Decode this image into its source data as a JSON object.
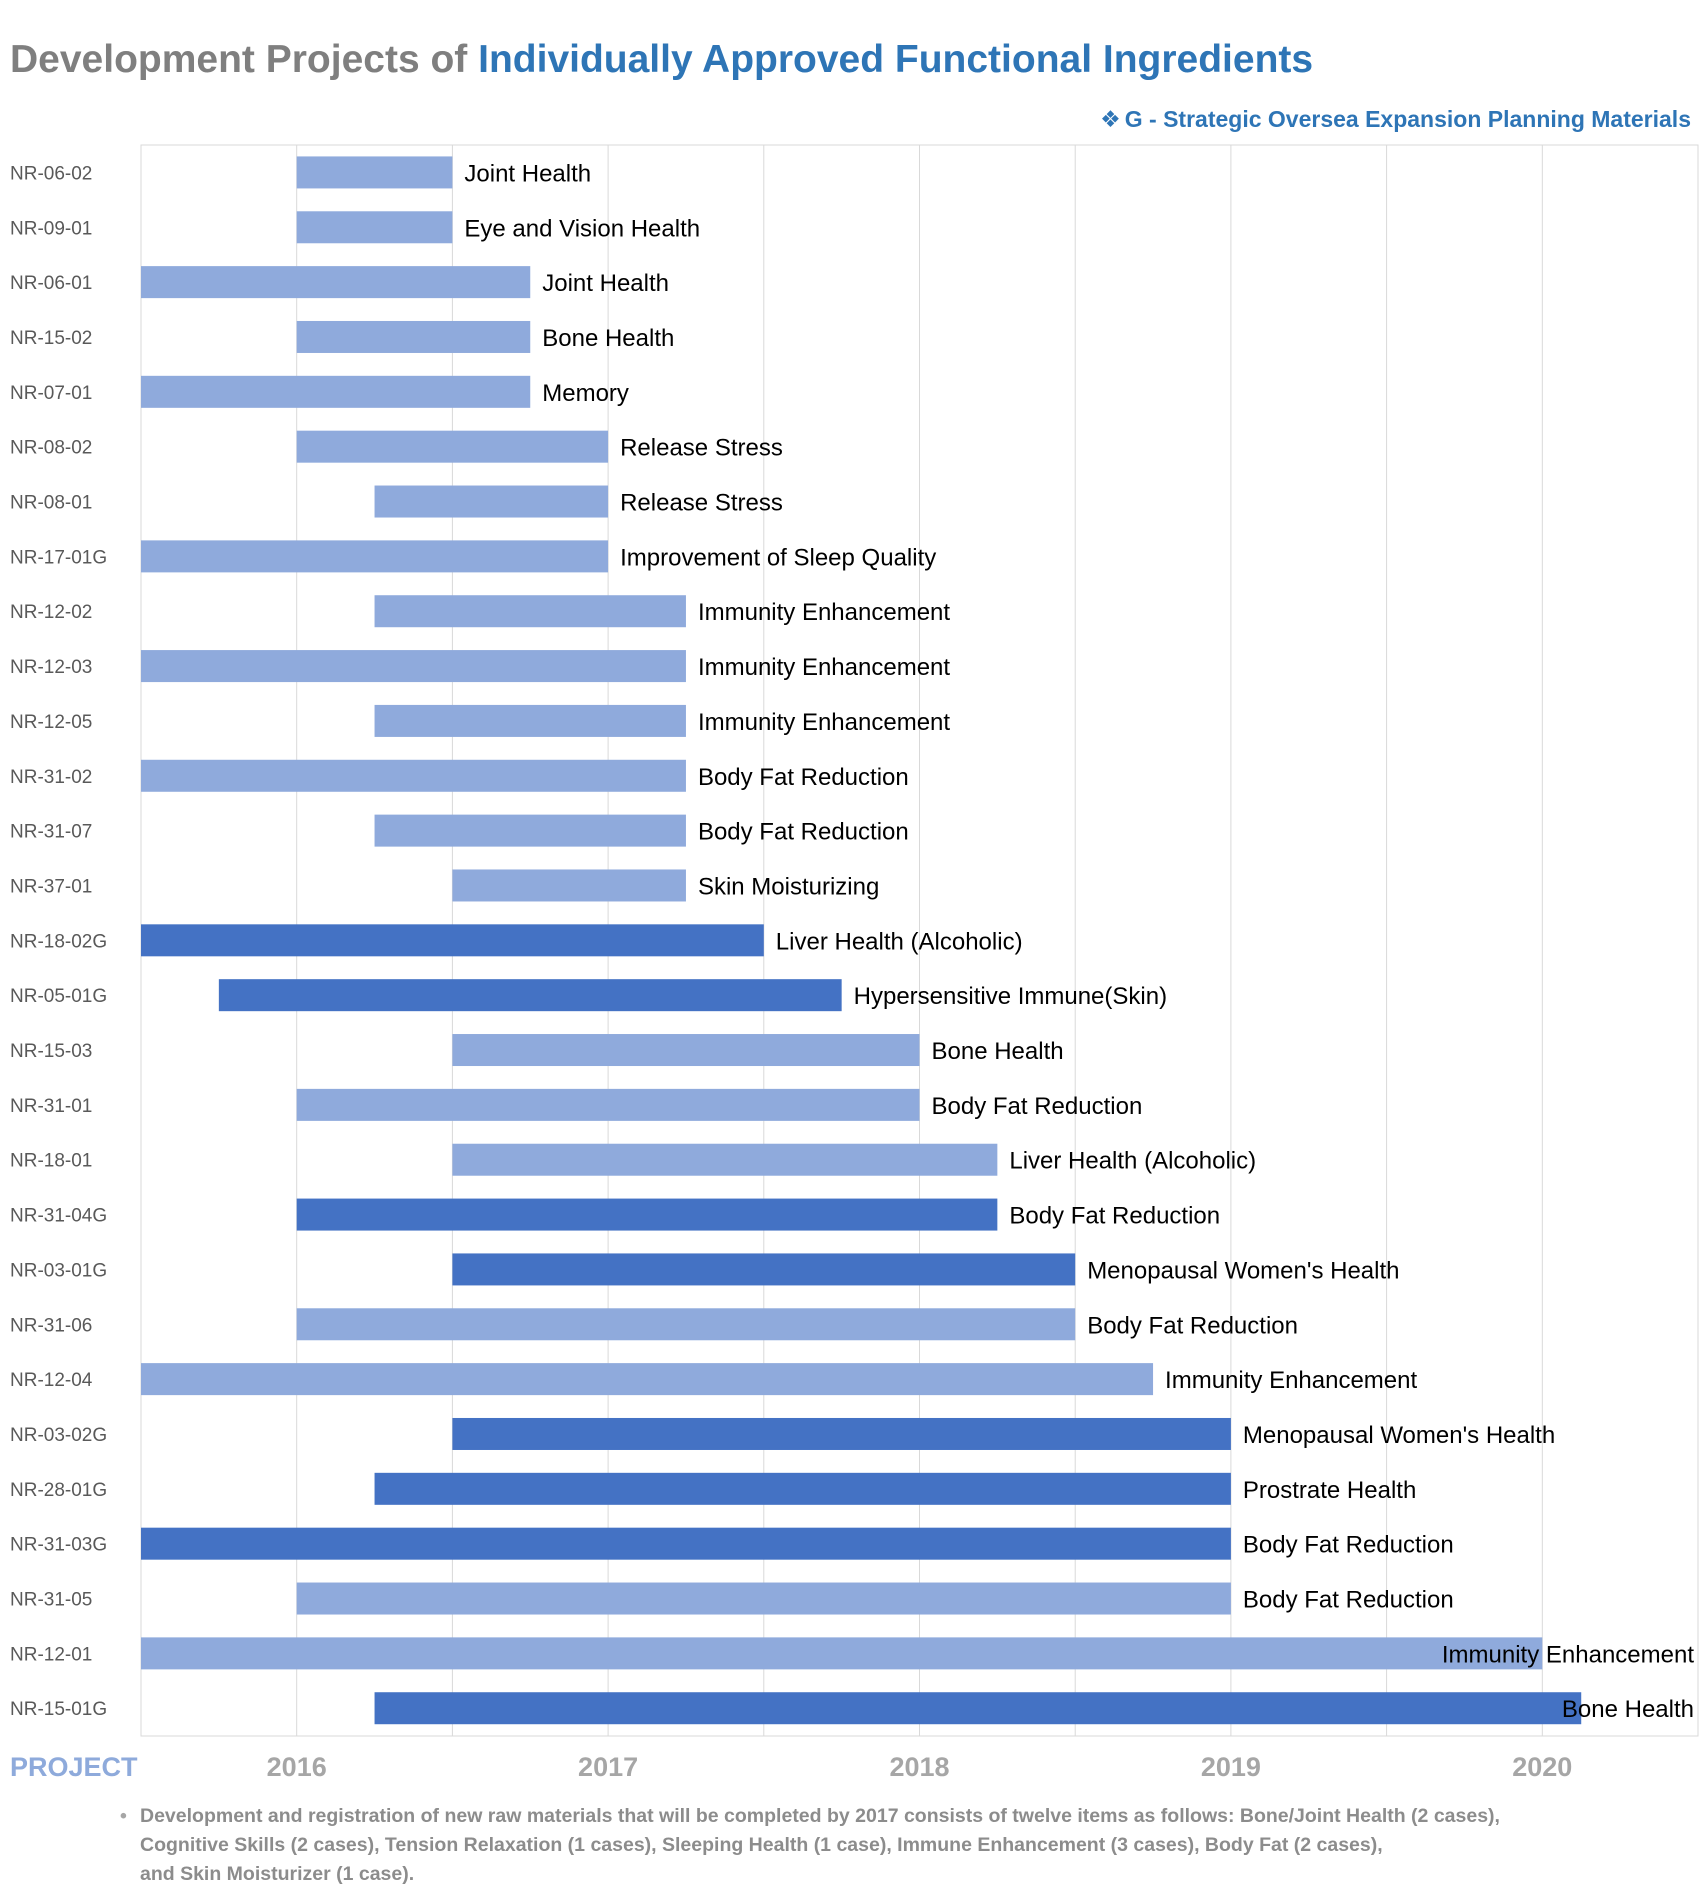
{
  "title": {
    "part1": "Development Projects of ",
    "part2": "Individually Approved Functional Ingredients"
  },
  "subtitle": {
    "symbol": "❖",
    "text": "G - Strategic Oversea Expansion Planning Materials"
  },
  "footnote": {
    "bullet": "•",
    "lines": [
      "Development and registration of new raw materials that will be completed by 2017 consists of twelve items as follows: Bone/Joint Health (2 cases),",
      "Cognitive Skills (2 cases), Tension Relaxation (1 cases), Sleeping Health (1 case), Immune Enhancement (3 cases), Body Fat (2 cases),",
      "and Skin Moisturizer (1 case)."
    ]
  },
  "chart_data": {
    "type": "bar",
    "orientation": "horizontal",
    "y_axis_title": "PROJECT",
    "x_range": [
      2015.5,
      2020.5
    ],
    "x_ticks": [
      2016,
      2017,
      2018,
      2019,
      2020
    ],
    "x_tick_labels": [
      "2016",
      "2017",
      "2018",
      "2019",
      "2020"
    ],
    "gridlines": true,
    "colors": {
      "regular": "#8faadc",
      "global": "#4472c4",
      "grid": "#d9d9d9"
    },
    "projects": [
      {
        "id": "NR-06-02",
        "label": "Joint Health",
        "start": 2016.0,
        "end": 2016.5,
        "global": false
      },
      {
        "id": "NR-09-01",
        "label": "Eye and Vision Health",
        "start": 2016.0,
        "end": 2016.5,
        "global": false
      },
      {
        "id": "NR-06-01",
        "label": "Joint Health",
        "start": 2015.5,
        "end": 2016.75,
        "global": false
      },
      {
        "id": "NR-15-02",
        "label": "Bone Health",
        "start": 2016.0,
        "end": 2016.75,
        "global": false
      },
      {
        "id": "NR-07-01",
        "label": "Memory",
        "start": 2015.5,
        "end": 2016.75,
        "global": false
      },
      {
        "id": "NR-08-02",
        "label": "Release Stress",
        "start": 2016.0,
        "end": 2017.0,
        "global": false
      },
      {
        "id": "NR-08-01",
        "label": "Release Stress",
        "start": 2016.25,
        "end": 2017.0,
        "global": false
      },
      {
        "id": "NR-17-01G",
        "label": "Improvement of Sleep Quality",
        "start": 2015.5,
        "end": 2017.0,
        "global": false
      },
      {
        "id": "NR-12-02",
        "label": "Immunity Enhancement",
        "start": 2016.25,
        "end": 2017.25,
        "global": false
      },
      {
        "id": "NR-12-03",
        "label": "Immunity Enhancement",
        "start": 2015.5,
        "end": 2017.25,
        "global": false
      },
      {
        "id": "NR-12-05",
        "label": "Immunity Enhancement",
        "start": 2016.25,
        "end": 2017.25,
        "global": false
      },
      {
        "id": "NR-31-02",
        "label": "Body Fat Reduction",
        "start": 2015.5,
        "end": 2017.25,
        "global": false
      },
      {
        "id": "NR-31-07",
        "label": "Body Fat Reduction",
        "start": 2016.25,
        "end": 2017.25,
        "global": false
      },
      {
        "id": "NR-37-01",
        "label": "Skin Moisturizing",
        "start": 2016.5,
        "end": 2017.25,
        "global": false
      },
      {
        "id": "NR-18-02G",
        "label": "Liver Health (Alcoholic)",
        "start": 2015.5,
        "end": 2017.5,
        "global": true
      },
      {
        "id": "NR-05-01G",
        "label": "Hypersensitive Immune(Skin)",
        "start": 2015.75,
        "end": 2017.75,
        "global": true
      },
      {
        "id": "NR-15-03",
        "label": "Bone Health",
        "start": 2016.5,
        "end": 2018.0,
        "global": false
      },
      {
        "id": "NR-31-01",
        "label": "Body Fat Reduction",
        "start": 2016.0,
        "end": 2018.0,
        "global": false
      },
      {
        "id": "NR-18-01",
        "label": "Liver Health (Alcoholic)",
        "start": 2016.5,
        "end": 2018.25,
        "global": false
      },
      {
        "id": "NR-31-04G",
        "label": "Body Fat Reduction",
        "start": 2016.0,
        "end": 2018.25,
        "global": true
      },
      {
        "id": "NR-03-01G",
        "label": "Menopausal Women's Health",
        "start": 2016.5,
        "end": 2018.5,
        "global": true
      },
      {
        "id": "NR-31-06",
        "label": "Body Fat Reduction",
        "start": 2016.0,
        "end": 2018.5,
        "global": false
      },
      {
        "id": "NR-12-04",
        "label": "Immunity Enhancement",
        "start": 2015.5,
        "end": 2018.75,
        "global": false
      },
      {
        "id": "NR-03-02G",
        "label": "Menopausal Women's Health",
        "start": 2016.5,
        "end": 2019.0,
        "global": true
      },
      {
        "id": "NR-28-01G",
        "label": "Prostrate Health",
        "start": 2016.25,
        "end": 2019.0,
        "global": true
      },
      {
        "id": "NR-31-03G",
        "label": "Body Fat Reduction",
        "start": 2015.5,
        "end": 2019.0,
        "global": true
      },
      {
        "id": "NR-31-05",
        "label": "Body Fat Reduction",
        "start": 2016.0,
        "end": 2019.0,
        "global": false
      },
      {
        "id": "NR-12-01",
        "label": "Immunity Enhancement",
        "start": 2015.5,
        "end": 2020.0,
        "global": false
      },
      {
        "id": "NR-15-01G",
        "label": "Bone Health",
        "start": 2016.25,
        "end": 2020.125,
        "global": true
      }
    ]
  }
}
